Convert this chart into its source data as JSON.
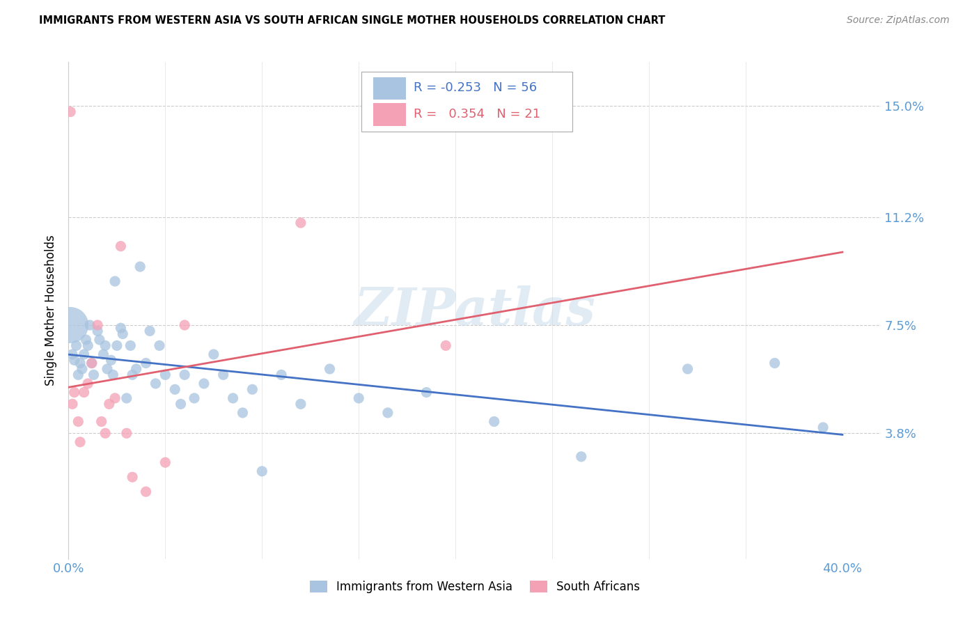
{
  "title": "IMMIGRANTS FROM WESTERN ASIA VS SOUTH AFRICAN SINGLE MOTHER HOUSEHOLDS CORRELATION CHART",
  "source": "Source: ZipAtlas.com",
  "ylabel": "Single Mother Households",
  "xlim": [
    0.0,
    0.42
  ],
  "ylim": [
    -0.005,
    0.165
  ],
  "yticks": [
    0.038,
    0.075,
    0.112,
    0.15
  ],
  "ytick_labels": [
    "3.8%",
    "7.5%",
    "11.2%",
    "15.0%"
  ],
  "xticks": [
    0.0,
    0.05,
    0.1,
    0.15,
    0.2,
    0.25,
    0.3,
    0.35,
    0.4
  ],
  "legend_R1": "-0.253",
  "legend_N1": "56",
  "legend_R2": "0.354",
  "legend_N2": "21",
  "color_blue": "#a8c4e0",
  "color_pink": "#f4a0b5",
  "color_blue_line": "#4472c4",
  "color_pink_line": "#e06070",
  "color_label": "#5b9bd5",
  "watermark": "ZIPatlas",
  "blue_x": [
    0.001,
    0.002,
    0.003,
    0.004,
    0.005,
    0.006,
    0.007,
    0.008,
    0.009,
    0.01,
    0.011,
    0.012,
    0.013,
    0.015,
    0.016,
    0.018,
    0.019,
    0.02,
    0.022,
    0.023,
    0.024,
    0.025,
    0.027,
    0.028,
    0.03,
    0.032,
    0.033,
    0.035,
    0.037,
    0.04,
    0.042,
    0.045,
    0.047,
    0.05,
    0.055,
    0.058,
    0.06,
    0.065,
    0.07,
    0.075,
    0.08,
    0.085,
    0.09,
    0.095,
    0.1,
    0.11,
    0.12,
    0.135,
    0.15,
    0.165,
    0.185,
    0.22,
    0.265,
    0.32,
    0.365,
    0.39
  ],
  "blue_y": [
    0.075,
    0.065,
    0.063,
    0.068,
    0.058,
    0.062,
    0.06,
    0.065,
    0.07,
    0.068,
    0.075,
    0.062,
    0.058,
    0.073,
    0.07,
    0.065,
    0.068,
    0.06,
    0.063,
    0.058,
    0.09,
    0.068,
    0.074,
    0.072,
    0.05,
    0.068,
    0.058,
    0.06,
    0.095,
    0.062,
    0.073,
    0.055,
    0.068,
    0.058,
    0.053,
    0.048,
    0.058,
    0.05,
    0.055,
    0.065,
    0.058,
    0.05,
    0.045,
    0.053,
    0.025,
    0.058,
    0.048,
    0.06,
    0.05,
    0.045,
    0.052,
    0.042,
    0.03,
    0.06,
    0.062,
    0.04
  ],
  "blue_sizes": [
    1400,
    120,
    120,
    120,
    120,
    120,
    120,
    120,
    120,
    120,
    120,
    120,
    120,
    120,
    120,
    120,
    120,
    120,
    120,
    120,
    120,
    120,
    120,
    120,
    120,
    120,
    120,
    120,
    120,
    120,
    120,
    120,
    120,
    120,
    120,
    120,
    120,
    120,
    120,
    120,
    120,
    120,
    120,
    120,
    120,
    120,
    120,
    120,
    120,
    120,
    120,
    120,
    120,
    120,
    120,
    120
  ],
  "pink_x": [
    0.001,
    0.002,
    0.003,
    0.005,
    0.006,
    0.008,
    0.01,
    0.012,
    0.015,
    0.017,
    0.019,
    0.021,
    0.024,
    0.027,
    0.03,
    0.033,
    0.04,
    0.05,
    0.06,
    0.12,
    0.195
  ],
  "pink_y": [
    0.148,
    0.048,
    0.052,
    0.042,
    0.035,
    0.052,
    0.055,
    0.062,
    0.075,
    0.042,
    0.038,
    0.048,
    0.05,
    0.102,
    0.038,
    0.023,
    0.018,
    0.028,
    0.075,
    0.11,
    0.068
  ],
  "pink_sizes": [
    120,
    120,
    120,
    120,
    120,
    120,
    120,
    120,
    120,
    120,
    120,
    120,
    120,
    120,
    120,
    120,
    120,
    120,
    120,
    120,
    120
  ]
}
